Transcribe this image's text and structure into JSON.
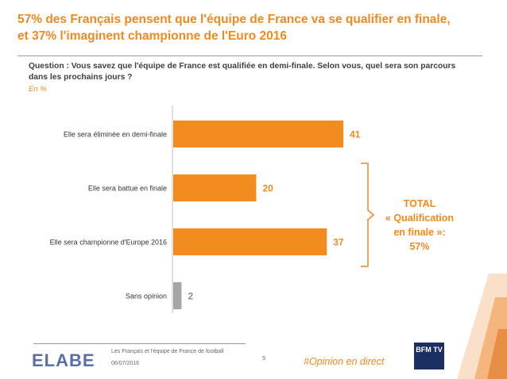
{
  "title": {
    "line1": "57% des Français pensent que l'équipe de France va se qualifier en finale,",
    "line2": "et 37% l'imaginent championne de l'Euro 2016"
  },
  "question": "Question : Vous savez que l'équipe de France est qualifiée en demi-finale. Selon vous, quel sera son parcours dans les prochains jours ?",
  "unit": "En %",
  "chart_data": {
    "type": "bar",
    "orientation": "horizontal",
    "categories": [
      "Elle sera éliminée en demi-finale",
      "Elle sera battue en finale",
      "Elle sera championne d'Europe 2016",
      "Sans opinion"
    ],
    "values": [
      41,
      20,
      37,
      2
    ],
    "colors": [
      "#f28c1f",
      "#f28c1f",
      "#f28c1f",
      "#a6a6a6"
    ],
    "label_colors": [
      "#ef8a1e",
      "#ef8a1e",
      "#ef8a1e",
      "#8c8c8c"
    ],
    "xlim": [
      0,
      45
    ],
    "grid": false,
    "bracket_covers": [
      1,
      2
    ]
  },
  "total": {
    "line1": "TOTAL",
    "line2": "« Qualification",
    "line3": "en finale »:",
    "line4": "57%"
  },
  "footer": {
    "logo": "ELABE",
    "subject": "Les Français et l'équipe de France de football",
    "date": "06/07/2016",
    "page": "5",
    "hashtag": "#Opinion en direct",
    "channel_logo": "BFM TV"
  },
  "colors": {
    "accent": "#ef8a1e",
    "bar": "#f28c1f",
    "neutral_bar": "#a6a6a6"
  }
}
